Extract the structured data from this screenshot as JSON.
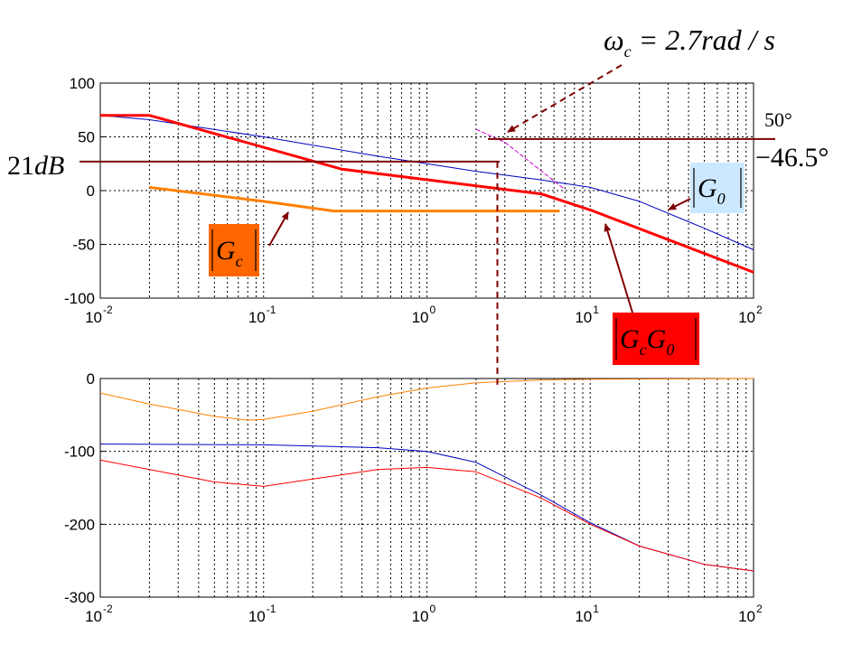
{
  "chart_data": [
    {
      "type": "line",
      "x_scale": "log",
      "xlim": [
        0.01,
        100
      ],
      "ylim": [
        -100,
        100
      ],
      "yticks": [
        "100",
        "50",
        "0",
        "-50",
        "-100"
      ],
      "xticks": [
        {
          "base": "10",
          "exp": "-2"
        },
        {
          "base": "10",
          "exp": "-1"
        },
        {
          "base": "10",
          "exp": "0"
        },
        {
          "base": "10",
          "exp": "1"
        },
        {
          "base": "10",
          "exp": "2"
        }
      ],
      "grid": true,
      "series": [
        {
          "key": "G0",
          "color": "#0000c0",
          "x": [
            0.01,
            0.02,
            0.1,
            0.5,
            1,
            2,
            5,
            10,
            20,
            50,
            100
          ],
          "y": [
            70,
            66,
            50,
            32,
            25,
            18,
            10,
            3,
            -10,
            -35,
            -55
          ]
        },
        {
          "key": "GcG0",
          "color": "#ff0000",
          "x": [
            0.01,
            0.02,
            0.3,
            5,
            10,
            100
          ],
          "y": [
            70,
            70,
            20,
            -3,
            -18,
            -76
          ]
        },
        {
          "key": "Gc",
          "color": "#ff8000",
          "x": [
            0.02,
            0.1,
            0.27,
            0.5,
            1,
            6.5
          ],
          "y": [
            3,
            -10,
            -19,
            -19,
            -19,
            -19
          ]
        },
        {
          "key": "asymptote",
          "color": "#cc00cc",
          "x": [
            2,
            3,
            7
          ],
          "y": [
            57,
            45,
            1
          ]
        }
      ],
      "annotations": {
        "crossover": {
          "base": "ω",
          "sub": "c",
          "rest": " = 2.7rad / s",
          "x": 2.7
        },
        "db_level": {
          "num": "21",
          "unit": "dB",
          "y": 27
        },
        "phase_margin_a": {
          "text": "50°",
          "y": 48
        },
        "phase_margin_b": {
          "text": "−46.5°"
        },
        "label_Gc": {
          "text": "G",
          "sub": "c",
          "bg": "#ff6600"
        },
        "label_G0": {
          "text": "G",
          "sub": "0",
          "bg": "#cce8ff"
        },
        "label_GcG0": {
          "t1": "G",
          "s1": "c",
          "t2": "G",
          "s2": "0",
          "bg": "#ff0000"
        }
      },
      "ref_color": "#800000"
    },
    {
      "type": "line",
      "x_scale": "log",
      "xlim": [
        0.01,
        100
      ],
      "ylim": [
        -300,
        0
      ],
      "yticks": [
        "0",
        "-100",
        "-200",
        "-300"
      ],
      "xticks": [
        {
          "base": "10",
          "exp": "-2"
        },
        {
          "base": "10",
          "exp": "-1"
        },
        {
          "base": "10",
          "exp": "0"
        },
        {
          "base": "10",
          "exp": "1"
        },
        {
          "base": "10",
          "exp": "2"
        }
      ],
      "grid": true,
      "series": [
        {
          "key": "Gc_phase",
          "color": "#ff8000",
          "x": [
            0.01,
            0.02,
            0.05,
            0.08,
            0.1,
            0.2,
            0.5,
            1,
            2,
            5,
            10,
            100
          ],
          "y": [
            -20,
            -35,
            -52,
            -57,
            -56,
            -45,
            -25,
            -13,
            -6,
            -2,
            -1,
            0
          ]
        },
        {
          "key": "G0_phase",
          "color": "#0000c0",
          "x": [
            0.01,
            0.1,
            0.5,
            1,
            2,
            5,
            10,
            20,
            50,
            100
          ],
          "y": [
            -90,
            -91,
            -95,
            -100,
            -115,
            -160,
            -198,
            -230,
            -255,
            -264
          ]
        },
        {
          "key": "GcG0_phase",
          "color": "#ff0000",
          "x": [
            0.01,
            0.02,
            0.05,
            0.1,
            0.2,
            0.5,
            1,
            2,
            5,
            10,
            20,
            50,
            100
          ],
          "y": [
            -112,
            -125,
            -142,
            -148,
            -138,
            -125,
            -122,
            -128,
            -164,
            -200,
            -230,
            -255,
            -264
          ]
        }
      ]
    }
  ]
}
